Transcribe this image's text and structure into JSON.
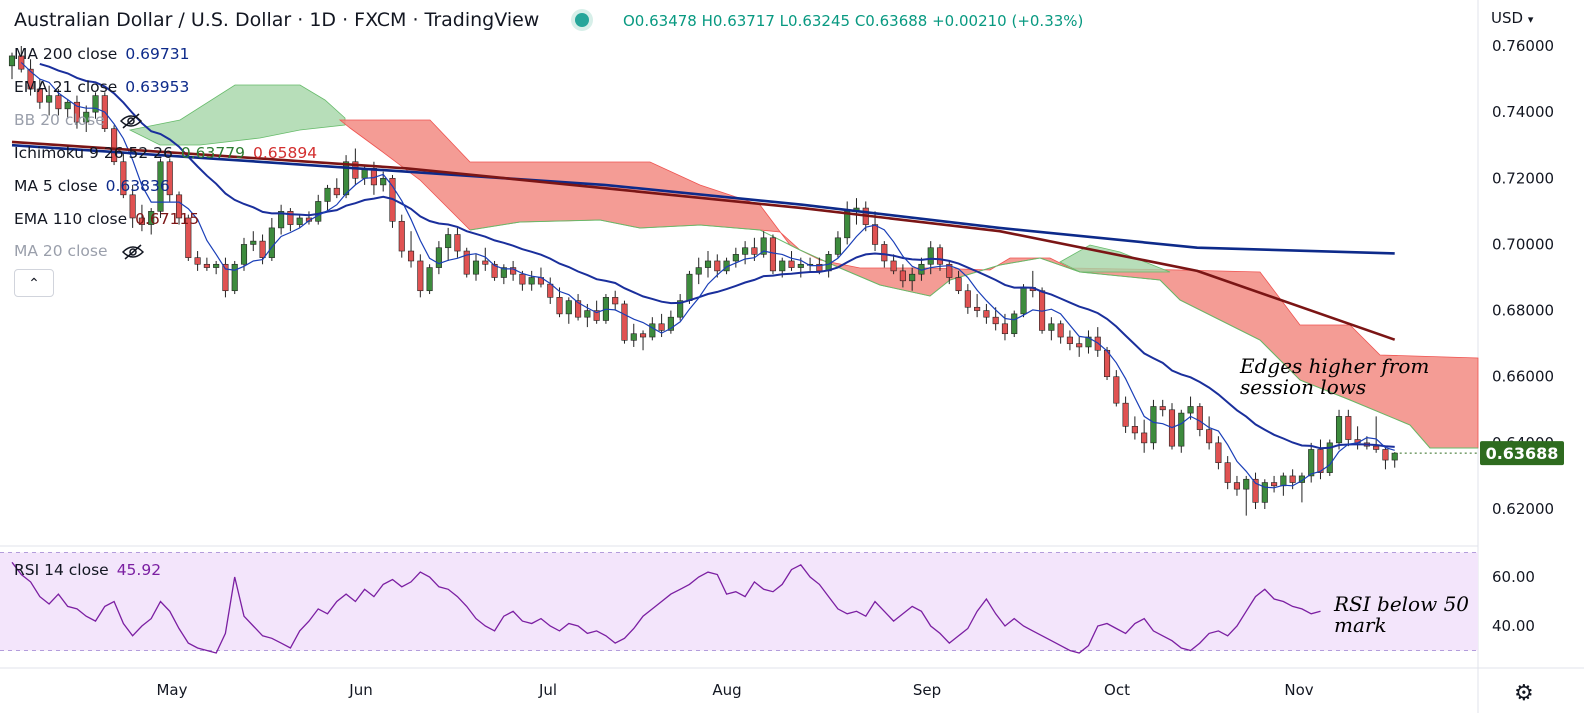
{
  "header": {
    "title": "Australian Dollar / U.S. Dollar · 1D · FXCM · TradingView",
    "ohlc": "O0.63478  H0.63717  L0.63245  C0.63688  +0.00210 (+0.33%)"
  },
  "legend": [
    {
      "label": "MA 200 close",
      "value": "0.69731",
      "color": "#0d2a8a"
    },
    {
      "label": "EMA 21 close",
      "value": "0.63953",
      "color": "#0d2a8a"
    },
    {
      "label": "BB 20 close",
      "value": "",
      "color": "#9a9fab",
      "hidden": true
    },
    {
      "label": "Ichimoku 9 26 52 26",
      "value": "0.63779",
      "value2": "0.65894",
      "color": "#2e7d32",
      "color2": "#d32f2f"
    },
    {
      "label": "MA 5 close",
      "value": "0.63836",
      "color": "#0d2a8a"
    },
    {
      "label": "EMA 110 close",
      "value": "0.67115",
      "color": "#7b1515"
    },
    {
      "label": "MA 20 close",
      "value": "",
      "color": "#9a9fab",
      "hidden": true
    }
  ],
  "currency_label": "USD",
  "annotations": {
    "price": [
      "Edges higher from",
      "session lows"
    ],
    "rsi": [
      "RSI below 50",
      "mark"
    ]
  },
  "rsi": {
    "label": "RSI 14 close",
    "value": "45.92",
    "ticks": [
      "60.00",
      "40.00"
    ],
    "upper": 70,
    "lower": 30
  },
  "chart_data": {
    "type": "candlestick",
    "title": "Australian Dollar / U.S. Dollar · 1D · FXCM · TradingView",
    "y_ticks": [
      "0.76000",
      "0.74000",
      "0.72000",
      "0.70000",
      "0.68000",
      "0.66000",
      "0.64000",
      "0.62000"
    ],
    "ylim": [
      0.612,
      0.767
    ],
    "x_labels": [
      "May",
      "Jun",
      "Jul",
      "Aug",
      "Sep",
      "Oct",
      "Nov"
    ],
    "last_price": "0.63688",
    "colors": {
      "up": "#3d8b3d",
      "down": "#e05252",
      "cloud_bull": "#a5d6a7",
      "cloud_bear": "#f28b82"
    },
    "candles": [
      [
        0.754,
        0.758,
        0.75,
        0.757
      ],
      [
        0.757,
        0.76,
        0.752,
        0.753
      ],
      [
        0.753,
        0.756,
        0.745,
        0.747
      ],
      [
        0.747,
        0.75,
        0.741,
        0.743
      ],
      [
        0.743,
        0.748,
        0.739,
        0.745
      ],
      [
        0.745,
        0.747,
        0.739,
        0.741
      ],
      [
        0.741,
        0.744,
        0.738,
        0.743
      ],
      [
        0.743,
        0.745,
        0.735,
        0.737
      ],
      [
        0.737,
        0.742,
        0.734,
        0.74
      ],
      [
        0.74,
        0.746,
        0.738,
        0.745
      ],
      [
        0.745,
        0.746,
        0.734,
        0.735
      ],
      [
        0.735,
        0.736,
        0.724,
        0.725
      ],
      [
        0.725,
        0.728,
        0.714,
        0.715
      ],
      [
        0.715,
        0.718,
        0.705,
        0.708
      ],
      [
        0.708,
        0.712,
        0.704,
        0.706
      ],
      [
        0.706,
        0.711,
        0.703,
        0.71
      ],
      [
        0.71,
        0.726,
        0.708,
        0.725
      ],
      [
        0.725,
        0.726,
        0.713,
        0.715
      ],
      [
        0.715,
        0.716,
        0.706,
        0.708
      ],
      [
        0.708,
        0.709,
        0.695,
        0.696
      ],
      [
        0.696,
        0.698,
        0.692,
        0.694
      ],
      [
        0.694,
        0.696,
        0.692,
        0.693
      ],
      [
        0.693,
        0.695,
        0.691,
        0.694
      ],
      [
        0.694,
        0.696,
        0.684,
        0.686
      ],
      [
        0.686,
        0.695,
        0.685,
        0.694
      ],
      [
        0.694,
        0.702,
        0.692,
        0.7
      ],
      [
        0.7,
        0.704,
        0.698,
        0.701
      ],
      [
        0.701,
        0.703,
        0.694,
        0.696
      ],
      [
        0.696,
        0.708,
        0.695,
        0.705
      ],
      [
        0.705,
        0.712,
        0.703,
        0.71
      ],
      [
        0.71,
        0.711,
        0.704,
        0.706
      ],
      [
        0.706,
        0.709,
        0.705,
        0.708
      ],
      [
        0.708,
        0.71,
        0.706,
        0.707
      ],
      [
        0.707,
        0.715,
        0.706,
        0.713
      ],
      [
        0.713,
        0.718,
        0.71,
        0.717
      ],
      [
        0.717,
        0.72,
        0.714,
        0.715
      ],
      [
        0.715,
        0.727,
        0.714,
        0.725
      ],
      [
        0.725,
        0.729,
        0.718,
        0.72
      ],
      [
        0.72,
        0.724,
        0.718,
        0.723
      ],
      [
        0.723,
        0.725,
        0.715,
        0.718
      ],
      [
        0.718,
        0.722,
        0.716,
        0.72
      ],
      [
        0.72,
        0.721,
        0.705,
        0.707
      ],
      [
        0.707,
        0.709,
        0.696,
        0.698
      ],
      [
        0.698,
        0.704,
        0.693,
        0.695
      ],
      [
        0.695,
        0.697,
        0.684,
        0.686
      ],
      [
        0.686,
        0.694,
        0.685,
        0.693
      ],
      [
        0.693,
        0.701,
        0.691,
        0.699
      ],
      [
        0.699,
        0.705,
        0.695,
        0.703
      ],
      [
        0.703,
        0.705,
        0.696,
        0.698
      ],
      [
        0.698,
        0.699,
        0.69,
        0.691
      ],
      [
        0.691,
        0.697,
        0.689,
        0.695
      ],
      [
        0.695,
        0.699,
        0.692,
        0.694
      ],
      [
        0.694,
        0.695,
        0.689,
        0.69
      ],
      [
        0.69,
        0.694,
        0.688,
        0.693
      ],
      [
        0.693,
        0.695,
        0.689,
        0.691
      ],
      [
        0.691,
        0.692,
        0.686,
        0.688
      ],
      [
        0.688,
        0.692,
        0.686,
        0.69
      ],
      [
        0.69,
        0.693,
        0.687,
        0.688
      ],
      [
        0.688,
        0.69,
        0.682,
        0.684
      ],
      [
        0.684,
        0.687,
        0.678,
        0.679
      ],
      [
        0.679,
        0.684,
        0.676,
        0.683
      ],
      [
        0.683,
        0.685,
        0.677,
        0.678
      ],
      [
        0.678,
        0.682,
        0.675,
        0.68
      ],
      [
        0.68,
        0.683,
        0.676,
        0.677
      ],
      [
        0.677,
        0.685,
        0.676,
        0.684
      ],
      [
        0.684,
        0.686,
        0.68,
        0.682
      ],
      [
        0.682,
        0.683,
        0.67,
        0.671
      ],
      [
        0.671,
        0.676,
        0.669,
        0.673
      ],
      [
        0.673,
        0.674,
        0.668,
        0.672
      ],
      [
        0.672,
        0.678,
        0.671,
        0.676
      ],
      [
        0.676,
        0.679,
        0.672,
        0.674
      ],
      [
        0.674,
        0.68,
        0.673,
        0.678
      ],
      [
        0.678,
        0.685,
        0.677,
        0.683
      ],
      [
        0.683,
        0.692,
        0.682,
        0.691
      ],
      [
        0.691,
        0.696,
        0.688,
        0.693
      ],
      [
        0.693,
        0.698,
        0.69,
        0.695
      ],
      [
        0.695,
        0.697,
        0.69,
        0.692
      ],
      [
        0.692,
        0.696,
        0.691,
        0.695
      ],
      [
        0.695,
        0.699,
        0.693,
        0.697
      ],
      [
        0.697,
        0.701,
        0.694,
        0.699
      ],
      [
        0.699,
        0.702,
        0.695,
        0.697
      ],
      [
        0.697,
        0.704,
        0.696,
        0.702
      ],
      [
        0.702,
        0.703,
        0.691,
        0.692
      ],
      [
        0.692,
        0.696,
        0.69,
        0.695
      ],
      [
        0.695,
        0.698,
        0.692,
        0.693
      ],
      [
        0.693,
        0.696,
        0.69,
        0.694
      ],
      [
        0.694,
        0.696,
        0.692,
        0.694
      ],
      [
        0.694,
        0.696,
        0.691,
        0.692
      ],
      [
        0.692,
        0.698,
        0.69,
        0.697
      ],
      [
        0.697,
        0.704,
        0.696,
        0.702
      ],
      [
        0.702,
        0.713,
        0.7,
        0.71
      ],
      [
        0.71,
        0.714,
        0.706,
        0.711
      ],
      [
        0.711,
        0.713,
        0.704,
        0.706
      ],
      [
        0.706,
        0.71,
        0.698,
        0.7
      ],
      [
        0.7,
        0.701,
        0.693,
        0.695
      ],
      [
        0.695,
        0.697,
        0.691,
        0.692
      ],
      [
        0.692,
        0.694,
        0.687,
        0.689
      ],
      [
        0.689,
        0.693,
        0.686,
        0.691
      ],
      [
        0.691,
        0.696,
        0.689,
        0.694
      ],
      [
        0.694,
        0.701,
        0.691,
        0.699
      ],
      [
        0.699,
        0.7,
        0.692,
        0.694
      ],
      [
        0.694,
        0.695,
        0.688,
        0.69
      ],
      [
        0.69,
        0.692,
        0.685,
        0.686
      ],
      [
        0.686,
        0.688,
        0.679,
        0.681
      ],
      [
        0.681,
        0.685,
        0.678,
        0.68
      ],
      [
        0.68,
        0.682,
        0.676,
        0.678
      ],
      [
        0.678,
        0.681,
        0.674,
        0.676
      ],
      [
        0.676,
        0.679,
        0.671,
        0.673
      ],
      [
        0.673,
        0.68,
        0.672,
        0.679
      ],
      [
        0.679,
        0.688,
        0.678,
        0.687
      ],
      [
        0.687,
        0.692,
        0.684,
        0.686
      ],
      [
        0.686,
        0.687,
        0.673,
        0.674
      ],
      [
        0.674,
        0.678,
        0.671,
        0.676
      ],
      [
        0.676,
        0.677,
        0.67,
        0.672
      ],
      [
        0.672,
        0.674,
        0.668,
        0.67
      ],
      [
        0.67,
        0.672,
        0.666,
        0.669
      ],
      [
        0.669,
        0.674,
        0.667,
        0.672
      ],
      [
        0.672,
        0.675,
        0.666,
        0.668
      ],
      [
        0.668,
        0.669,
        0.659,
        0.66
      ],
      [
        0.66,
        0.662,
        0.651,
        0.652
      ],
      [
        0.652,
        0.654,
        0.643,
        0.645
      ],
      [
        0.645,
        0.648,
        0.641,
        0.643
      ],
      [
        0.643,
        0.647,
        0.637,
        0.64
      ],
      [
        0.64,
        0.653,
        0.638,
        0.651
      ],
      [
        0.651,
        0.653,
        0.648,
        0.65
      ],
      [
        0.65,
        0.652,
        0.638,
        0.639
      ],
      [
        0.639,
        0.65,
        0.637,
        0.649
      ],
      [
        0.649,
        0.654,
        0.647,
        0.651
      ],
      [
        0.651,
        0.652,
        0.642,
        0.644
      ],
      [
        0.644,
        0.648,
        0.638,
        0.64
      ],
      [
        0.64,
        0.642,
        0.632,
        0.634
      ],
      [
        0.634,
        0.636,
        0.626,
        0.628
      ],
      [
        0.628,
        0.63,
        0.624,
        0.626
      ],
      [
        0.626,
        0.63,
        0.618,
        0.629
      ],
      [
        0.629,
        0.631,
        0.62,
        0.622
      ],
      [
        0.622,
        0.629,
        0.62,
        0.628
      ],
      [
        0.628,
        0.63,
        0.625,
        0.627
      ],
      [
        0.627,
        0.631,
        0.624,
        0.63
      ],
      [
        0.63,
        0.632,
        0.626,
        0.628
      ],
      [
        0.628,
        0.631,
        0.622,
        0.63
      ],
      [
        0.63,
        0.64,
        0.628,
        0.638
      ],
      [
        0.638,
        0.641,
        0.629,
        0.631
      ],
      [
        0.631,
        0.641,
        0.63,
        0.64
      ],
      [
        0.64,
        0.65,
        0.638,
        0.648
      ],
      [
        0.648,
        0.65,
        0.639,
        0.641
      ],
      [
        0.641,
        0.645,
        0.638,
        0.64
      ],
      [
        0.64,
        0.642,
        0.638,
        0.639
      ],
      [
        0.639,
        0.648,
        0.637,
        0.638
      ],
      [
        0.638,
        0.639,
        0.632,
        0.6348
      ],
      [
        0.6348,
        0.6372,
        0.6325,
        0.6369
      ]
    ],
    "series": [
      {
        "name": "MA 200 close",
        "color": "#0d2a8a",
        "values": [
          0.73,
          0.726,
          0.722,
          0.718,
          0.712,
          0.705,
          0.699,
          0.6973
        ]
      },
      {
        "name": "EMA 110 close",
        "color": "#7b1515",
        "values": [
          0.731,
          0.727,
          0.723,
          0.717,
          0.711,
          0.704,
          0.692,
          0.6712
        ]
      }
    ],
    "rsi_values": [
      66,
      61,
      58,
      52,
      49,
      53,
      48,
      47,
      44,
      42,
      48,
      50,
      41,
      36,
      40,
      43,
      50,
      46,
      39,
      33,
      31,
      30,
      29,
      37,
      60,
      44,
      40,
      36,
      35,
      33,
      31,
      38,
      42,
      47,
      45,
      50,
      53,
      50,
      55,
      52,
      57,
      59,
      56,
      58,
      62,
      60,
      56,
      55,
      52,
      48,
      43,
      40,
      38,
      44,
      46,
      42,
      41,
      43,
      40,
      38,
      41,
      40,
      37,
      38,
      36,
      33,
      35,
      39,
      44,
      47,
      50,
      53,
      55,
      57,
      60,
      62,
      61,
      53,
      54,
      52,
      58,
      55,
      54,
      57,
      63,
      65,
      60,
      57,
      52,
      47,
      45,
      46,
      44,
      50,
      46,
      42,
      45,
      48,
      46,
      40,
      37,
      33,
      36,
      39,
      46,
      51,
      45,
      40,
      43,
      40,
      38,
      36,
      34,
      32,
      30,
      29,
      32,
      40,
      41,
      39,
      37,
      41,
      43,
      38,
      36,
      34,
      31,
      30,
      33,
      37,
      38,
      36,
      40,
      46,
      52,
      55,
      51,
      50,
      48,
      47,
      45,
      46
    ]
  }
}
